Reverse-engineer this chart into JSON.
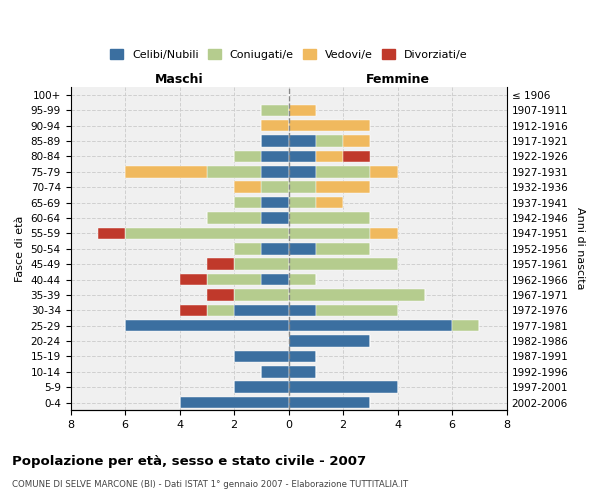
{
  "age_groups": [
    "0-4",
    "5-9",
    "10-14",
    "15-19",
    "20-24",
    "25-29",
    "30-34",
    "35-39",
    "40-44",
    "45-49",
    "50-54",
    "55-59",
    "60-64",
    "65-69",
    "70-74",
    "75-79",
    "80-84",
    "85-89",
    "90-94",
    "95-99",
    "100+"
  ],
  "birth_years": [
    "2002-2006",
    "1997-2001",
    "1992-1996",
    "1987-1991",
    "1982-1986",
    "1977-1981",
    "1972-1976",
    "1967-1971",
    "1962-1966",
    "1957-1961",
    "1952-1956",
    "1947-1951",
    "1942-1946",
    "1937-1941",
    "1932-1936",
    "1927-1931",
    "1922-1926",
    "1917-1921",
    "1912-1916",
    "1907-1911",
    "≤ 1906"
  ],
  "maschi_celibe": [
    4,
    2,
    1,
    2,
    0,
    6,
    2,
    0,
    1,
    0,
    1,
    0,
    1,
    1,
    0,
    1,
    1,
    1,
    0,
    0,
    0
  ],
  "maschi_coniugato": [
    0,
    0,
    0,
    0,
    0,
    0,
    1,
    2,
    2,
    2,
    1,
    6,
    2,
    1,
    1,
    2,
    1,
    0,
    0,
    1,
    0
  ],
  "maschi_vedovo": [
    0,
    0,
    0,
    0,
    0,
    0,
    0,
    0,
    0,
    0,
    0,
    0,
    0,
    0,
    1,
    3,
    0,
    0,
    1,
    0,
    0
  ],
  "maschi_divorziato": [
    0,
    0,
    0,
    0,
    0,
    0,
    1,
    1,
    1,
    1,
    0,
    1,
    0,
    0,
    0,
    0,
    0,
    0,
    0,
    0,
    0
  ],
  "femmine_celibe": [
    3,
    4,
    1,
    1,
    3,
    6,
    1,
    0,
    0,
    0,
    1,
    0,
    0,
    0,
    0,
    1,
    1,
    1,
    0,
    0,
    0
  ],
  "femmine_coniugato": [
    0,
    0,
    0,
    0,
    0,
    1,
    3,
    5,
    1,
    4,
    2,
    3,
    3,
    1,
    1,
    2,
    0,
    1,
    0,
    0,
    0
  ],
  "femmine_vedovo": [
    0,
    0,
    0,
    0,
    0,
    0,
    0,
    0,
    0,
    0,
    0,
    1,
    0,
    1,
    2,
    1,
    1,
    1,
    3,
    1,
    0
  ],
  "femmine_divorziato": [
    0,
    0,
    0,
    0,
    0,
    0,
    0,
    0,
    0,
    0,
    0,
    0,
    0,
    0,
    0,
    0,
    1,
    0,
    0,
    0,
    0
  ],
  "color_celibe": "#3b6fa0",
  "color_coniugato": "#b5cc8e",
  "color_vedovo": "#f0b95e",
  "color_divorziato": "#c0392b",
  "title": "Popolazione per età, sesso e stato civile - 2007",
  "subtitle": "COMUNE DI SELVE MARCONE (BI) - Dati ISTAT 1° gennaio 2007 - Elaborazione TUTTITALIA.IT",
  "xlabel_left": "Maschi",
  "xlabel_right": "Femmine",
  "ylabel_left": "Fasce di età",
  "ylabel_right": "Anni di nascita",
  "xlim": 8,
  "bg_color": "#ffffff",
  "grid_color": "#cccccc",
  "bar_height": 0.75
}
